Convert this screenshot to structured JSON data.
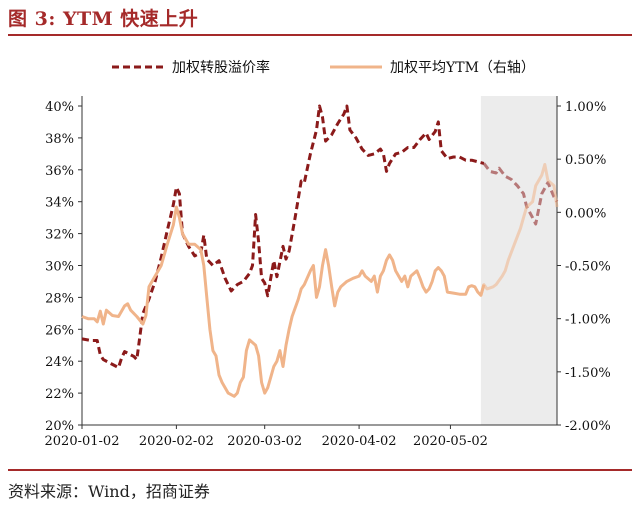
{
  "figure_title": "图 3:  YTM 快速上升",
  "source": "资料来源：Wind，招商证券",
  "colors": {
    "premium": "#8b1a1a",
    "ytm": "#f0b48a",
    "shade": "#ececec",
    "accent": "#a52a2a"
  },
  "chart_data": {
    "type": "line",
    "title": "",
    "xlabel": "",
    "ylabel": "",
    "x_ticks": [
      "2020-01-02",
      "2020-02-02",
      "2020-03-02",
      "2020-04-02",
      "2020-05-02"
    ],
    "x_tick_pos": [
      0,
      31,
      60,
      91,
      121
    ],
    "x_range": [
      0,
      156
    ],
    "shade_x_range": [
      131,
      156
    ],
    "y_left": {
      "ticks": [
        "20%",
        "22%",
        "24%",
        "26%",
        "28%",
        "30%",
        "32%",
        "34%",
        "36%",
        "38%",
        "40%"
      ],
      "range": [
        20,
        40
      ]
    },
    "y_right": {
      "ticks": [
        "-2.00%",
        "-1.50%",
        "-1.00%",
        "-0.50%",
        "0.00%",
        "0.50%",
        "1.00%"
      ],
      "range": [
        -2.0,
        1.0
      ]
    },
    "legend": {
      "placement": "top"
    },
    "series": [
      {
        "name": "加权转股溢价率",
        "axis": "left",
        "style": "dashed",
        "points": [
          [
            0,
            25.4
          ],
          [
            3,
            25.3
          ],
          [
            5,
            25.3
          ],
          [
            6,
            24.4
          ],
          [
            7,
            24.1
          ],
          [
            9,
            23.9
          ],
          [
            11,
            23.7
          ],
          [
            12,
            23.6
          ],
          [
            13,
            24.2
          ],
          [
            14,
            24.6
          ],
          [
            16,
            24.4
          ],
          [
            17,
            24.3
          ],
          [
            18,
            24.1
          ],
          [
            20,
            27.0
          ],
          [
            22,
            27.9
          ],
          [
            24,
            29.0
          ],
          [
            26,
            30.5
          ],
          [
            28,
            32.2
          ],
          [
            30,
            33.8
          ],
          [
            31,
            34.9
          ],
          [
            32,
            34.5
          ],
          [
            33,
            32.0
          ],
          [
            35,
            31.2
          ],
          [
            37,
            30.6
          ],
          [
            39,
            30.8
          ],
          [
            40,
            31.9
          ],
          [
            41,
            30.4
          ],
          [
            43,
            30.0
          ],
          [
            45,
            30.3
          ],
          [
            47,
            29.2
          ],
          [
            49,
            28.4
          ],
          [
            51,
            28.8
          ],
          [
            53,
            29.0
          ],
          [
            55,
            29.5
          ],
          [
            56,
            30.0
          ],
          [
            57,
            33.2
          ],
          [
            58,
            31.5
          ],
          [
            59,
            29.2
          ],
          [
            60,
            28.9
          ],
          [
            61,
            28.1
          ],
          [
            63,
            30.3
          ],
          [
            64,
            29.3
          ],
          [
            66,
            31.2
          ],
          [
            67,
            30.4
          ],
          [
            68,
            30.9
          ],
          [
            70,
            33.0
          ],
          [
            72,
            35.3
          ],
          [
            73,
            35.2
          ],
          [
            75,
            37.0
          ],
          [
            77,
            38.5
          ],
          [
            78,
            40.0
          ],
          [
            79,
            39.3
          ],
          [
            80,
            37.8
          ],
          [
            82,
            38.2
          ],
          [
            84,
            38.9
          ],
          [
            86,
            39.5
          ],
          [
            87,
            40.0
          ],
          [
            88,
            38.5
          ],
          [
            90,
            38.0
          ],
          [
            92,
            37.3
          ],
          [
            94,
            36.9
          ],
          [
            96,
            37.0
          ],
          [
            98,
            37.3
          ],
          [
            99,
            37.0
          ],
          [
            100,
            35.9
          ],
          [
            101,
            36.4
          ],
          [
            103,
            37.0
          ],
          [
            105,
            37.1
          ],
          [
            107,
            37.4
          ],
          [
            109,
            37.4
          ],
          [
            111,
            37.9
          ],
          [
            113,
            38.3
          ],
          [
            114,
            37.9
          ],
          [
            116,
            38.4
          ],
          [
            117,
            39.0
          ],
          [
            118,
            37.2
          ],
          [
            120,
            36.7
          ],
          [
            122,
            36.8
          ],
          [
            124,
            36.8
          ],
          [
            126,
            36.6
          ],
          [
            128,
            36.6
          ],
          [
            130,
            36.5
          ],
          [
            132,
            36.4
          ],
          [
            134,
            35.9
          ],
          [
            136,
            35.8
          ],
          [
            137,
            36.1
          ],
          [
            139,
            35.6
          ],
          [
            141,
            35.4
          ],
          [
            143,
            35.0
          ],
          [
            145,
            34.5
          ],
          [
            146,
            33.7
          ],
          [
            148,
            33.0
          ],
          [
            149,
            32.6
          ],
          [
            151,
            34.5
          ],
          [
            153,
            35.2
          ],
          [
            155,
            34.3
          ],
          [
            156,
            34.0
          ]
        ]
      },
      {
        "name": "加权平均YTM（右轴）",
        "axis": "right",
        "style": "solid",
        "points": [
          [
            0,
            -0.98
          ],
          [
            2,
            -1.0
          ],
          [
            4,
            -1.0
          ],
          [
            5,
            -1.03
          ],
          [
            6,
            -0.93
          ],
          [
            7,
            -1.05
          ],
          [
            8,
            -0.92
          ],
          [
            10,
            -0.97
          ],
          [
            12,
            -0.98
          ],
          [
            14,
            -0.88
          ],
          [
            15,
            -0.86
          ],
          [
            16,
            -0.92
          ],
          [
            18,
            -0.98
          ],
          [
            20,
            -1.05
          ],
          [
            21,
            -0.97
          ],
          [
            22,
            -0.7
          ],
          [
            24,
            -0.6
          ],
          [
            26,
            -0.5
          ],
          [
            28,
            -0.3
          ],
          [
            30,
            -0.12
          ],
          [
            31,
            0.05
          ],
          [
            32,
            -0.05
          ],
          [
            33,
            -0.2
          ],
          [
            35,
            -0.3
          ],
          [
            37,
            -0.3
          ],
          [
            39,
            -0.35
          ],
          [
            40,
            -0.5
          ],
          [
            41,
            -0.8
          ],
          [
            42,
            -1.1
          ],
          [
            43,
            -1.3
          ],
          [
            44,
            -1.35
          ],
          [
            45,
            -1.53
          ],
          [
            46,
            -1.6
          ],
          [
            48,
            -1.7
          ],
          [
            50,
            -1.73
          ],
          [
            51,
            -1.7
          ],
          [
            52,
            -1.6
          ],
          [
            53,
            -1.55
          ],
          [
            54,
            -1.3
          ],
          [
            55,
            -1.2
          ],
          [
            57,
            -1.25
          ],
          [
            58,
            -1.35
          ],
          [
            59,
            -1.6
          ],
          [
            60,
            -1.7
          ],
          [
            61,
            -1.65
          ],
          [
            62,
            -1.55
          ],
          [
            63,
            -1.45
          ],
          [
            64,
            -1.4
          ],
          [
            65,
            -1.3
          ],
          [
            66,
            -1.45
          ],
          [
            67,
            -1.25
          ],
          [
            68,
            -1.1
          ],
          [
            69,
            -0.98
          ],
          [
            71,
            -0.82
          ],
          [
            72,
            -0.72
          ],
          [
            73,
            -0.68
          ],
          [
            75,
            -0.55
          ],
          [
            76,
            -0.5
          ],
          [
            77,
            -0.8
          ],
          [
            78,
            -0.7
          ],
          [
            79,
            -0.5
          ],
          [
            80,
            -0.35
          ],
          [
            81,
            -0.5
          ],
          [
            82,
            -0.7
          ],
          [
            83,
            -0.88
          ],
          [
            84,
            -0.75
          ],
          [
            85,
            -0.7
          ],
          [
            87,
            -0.65
          ],
          [
            89,
            -0.62
          ],
          [
            91,
            -0.6
          ],
          [
            92,
            -0.55
          ],
          [
            93,
            -0.6
          ],
          [
            95,
            -0.65
          ],
          [
            96,
            -0.6
          ],
          [
            97,
            -0.75
          ],
          [
            98,
            -0.6
          ],
          [
            99,
            -0.55
          ],
          [
            100,
            -0.45
          ],
          [
            101,
            -0.4
          ],
          [
            102,
            -0.45
          ],
          [
            103,
            -0.55
          ],
          [
            104,
            -0.6
          ],
          [
            105,
            -0.65
          ],
          [
            106,
            -0.6
          ],
          [
            107,
            -0.7
          ],
          [
            108,
            -0.6
          ],
          [
            110,
            -0.55
          ],
          [
            111,
            -0.62
          ],
          [
            112,
            -0.7
          ],
          [
            113,
            -0.75
          ],
          [
            114,
            -0.72
          ],
          [
            115,
            -0.65
          ],
          [
            116,
            -0.55
          ],
          [
            117,
            -0.52
          ],
          [
            118,
            -0.55
          ],
          [
            119,
            -0.6
          ],
          [
            120,
            -0.75
          ],
          [
            122,
            -0.76
          ],
          [
            124,
            -0.77
          ],
          [
            126,
            -0.77
          ],
          [
            127,
            -0.7
          ],
          [
            128,
            -0.69
          ],
          [
            129,
            -0.7
          ],
          [
            130,
            -0.75
          ],
          [
            131,
            -0.78
          ],
          [
            132,
            -0.68
          ],
          [
            133,
            -0.72
          ],
          [
            135,
            -0.7
          ],
          [
            136,
            -0.68
          ],
          [
            138,
            -0.6
          ],
          [
            139,
            -0.55
          ],
          [
            140,
            -0.45
          ],
          [
            142,
            -0.3
          ],
          [
            144,
            -0.15
          ],
          [
            145,
            -0.05
          ],
          [
            146,
            0.05
          ],
          [
            148,
            0.1
          ],
          [
            149,
            0.25
          ],
          [
            151,
            0.35
          ],
          [
            152,
            0.45
          ],
          [
            153,
            0.3
          ],
          [
            155,
            0.25
          ],
          [
            156,
            0.05
          ]
        ]
      }
    ]
  }
}
